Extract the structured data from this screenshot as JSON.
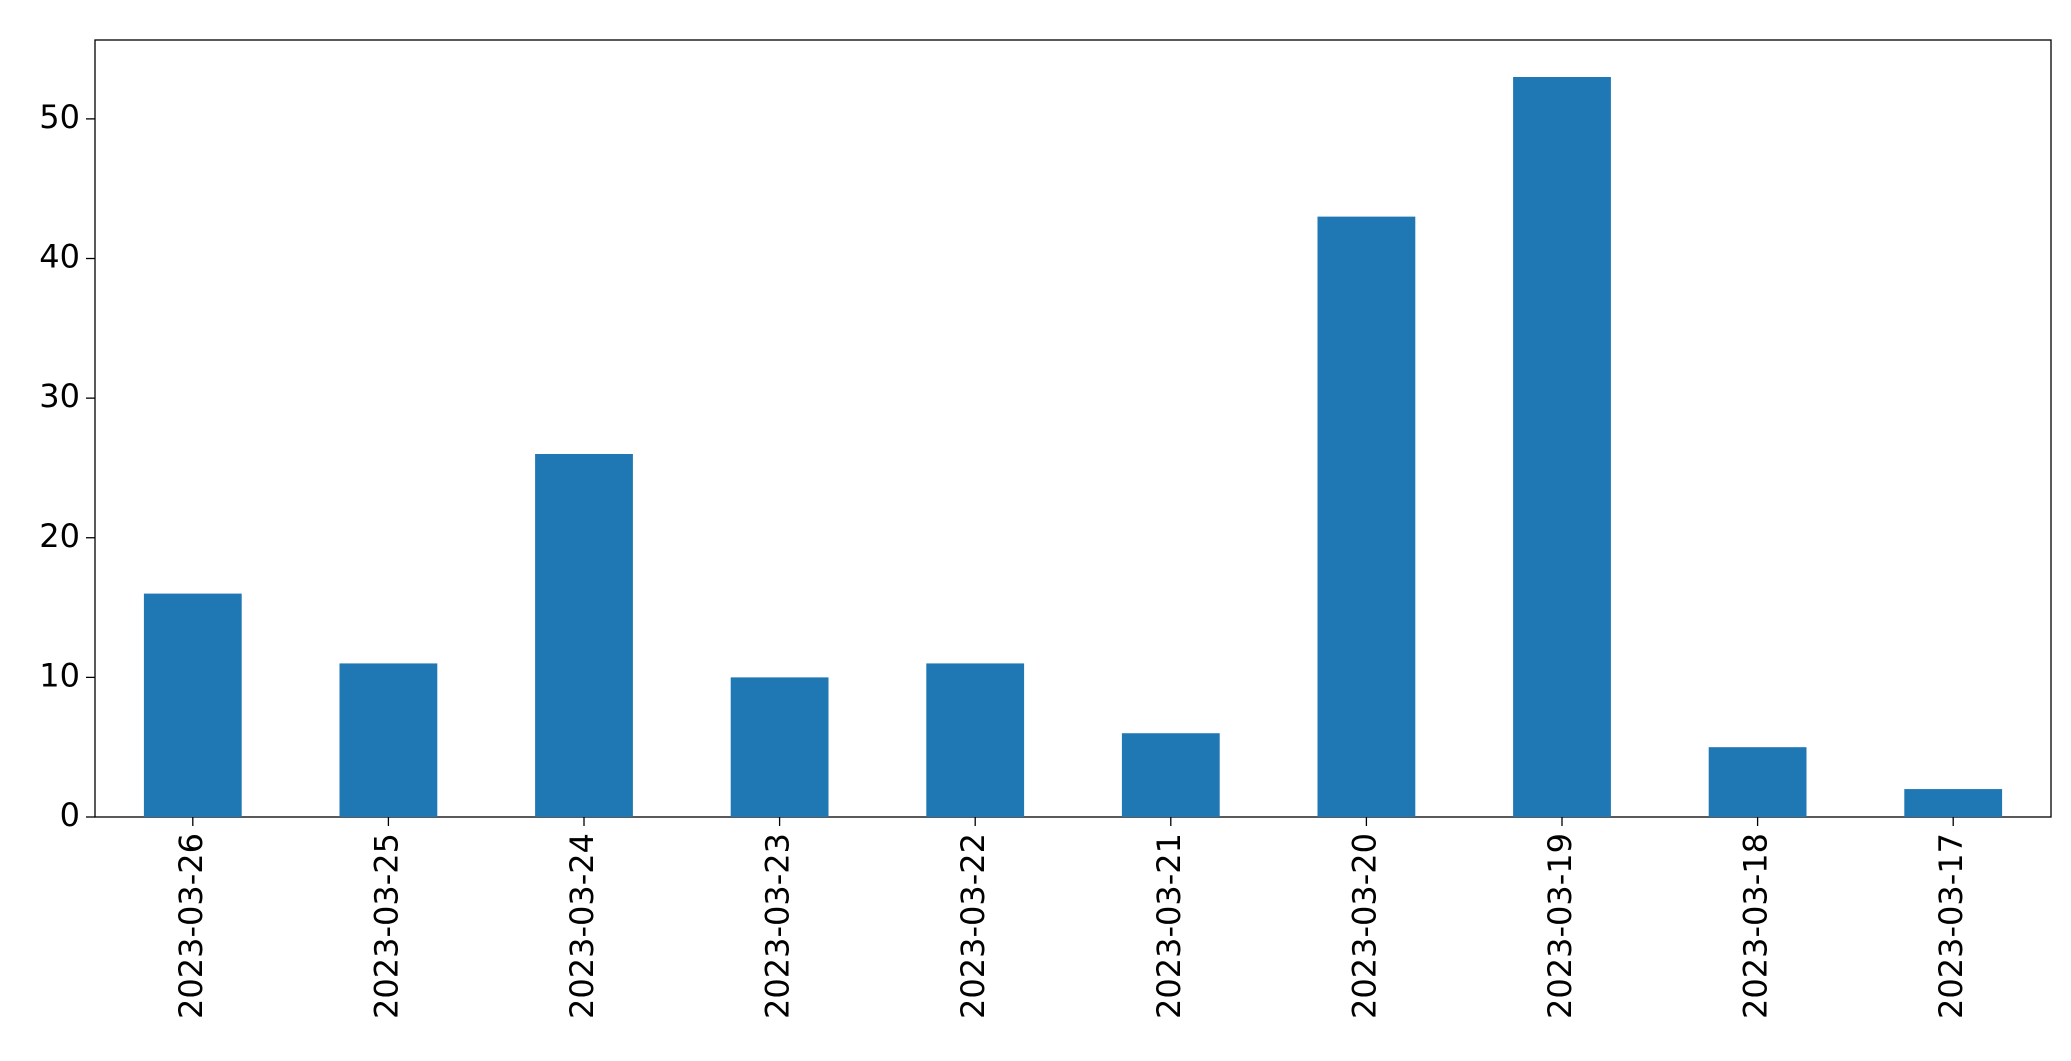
{
  "chart_data": {
    "type": "bar",
    "categories": [
      "2023-03-26",
      "2023-03-25",
      "2023-03-24",
      "2023-03-23",
      "2023-03-22",
      "2023-03-21",
      "2023-03-20",
      "2023-03-19",
      "2023-03-18",
      "2023-03-17"
    ],
    "values": [
      16,
      11,
      26,
      10,
      11,
      6,
      43,
      53,
      5,
      2
    ],
    "color": "#1f77b4",
    "ylim": [
      0,
      55.65
    ],
    "yticks": [
      0,
      10,
      20,
      30,
      40,
      50
    ],
    "grid": false
  }
}
